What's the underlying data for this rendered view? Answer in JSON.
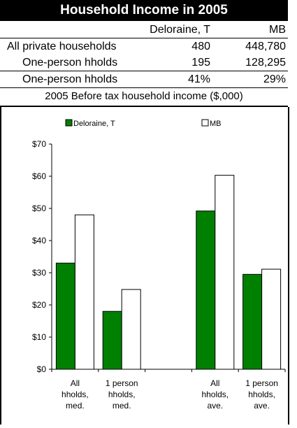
{
  "title": "Household Income in 2005",
  "table": {
    "headers": [
      "Deloraine, T",
      "MB"
    ],
    "rows": [
      {
        "label": "All private households",
        "a": "480",
        "b": "448,780"
      },
      {
        "label": "One-person hholds",
        "a": "195",
        "b": "128,295"
      },
      {
        "label": "One-person hholds",
        "a": "41%",
        "b": "29%"
      }
    ]
  },
  "caption": "2005 Before tax household income ($,000)",
  "chart_data": {
    "type": "bar",
    "categories": [
      [
        "All",
        "hholds,",
        "med."
      ],
      [
        "1 person",
        "hholds,",
        "med."
      ],
      [
        "",
        "",
        ""
      ],
      [
        "All",
        "hholds,",
        "ave."
      ],
      [
        "1 person",
        "hholds,",
        "ave."
      ]
    ],
    "series": [
      {
        "name": "Deloraine, T",
        "color": "#008000",
        "values": [
          33,
          18,
          null,
          49.2,
          29.5
        ]
      },
      {
        "name": "MB",
        "color": "#ffffff",
        "values": [
          48,
          24.8,
          null,
          60.3,
          31.1
        ]
      }
    ],
    "ylim": [
      0,
      70
    ],
    "yticks": [
      "$0",
      "$10",
      "$20",
      "$30",
      "$40",
      "$50",
      "$60",
      "$70"
    ],
    "ytick_values": [
      0,
      10,
      20,
      30,
      40,
      50,
      60,
      70
    ],
    "legend_position": "top",
    "grid": false
  }
}
